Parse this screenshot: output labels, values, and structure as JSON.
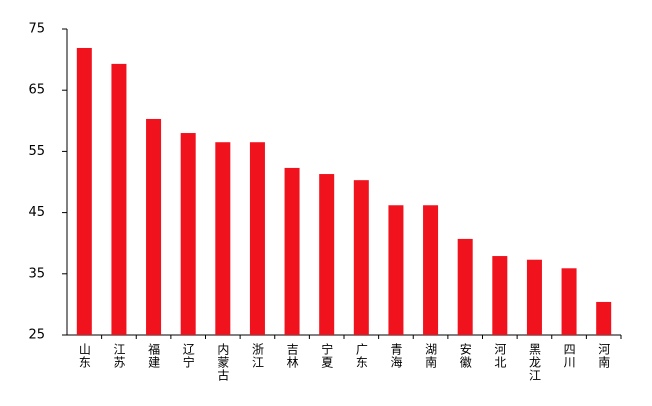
{
  "chart_data": {
    "type": "bar",
    "categories": [
      "山东",
      "江苏",
      "福建",
      "辽宁",
      "内蒙古",
      "浙江",
      "吉林",
      "宁夏",
      "广东",
      "青海",
      "湖南",
      "安徽",
      "河北",
      "黑龙江",
      "四川",
      "河南"
    ],
    "values": [
      71.9,
      69.3,
      60.3,
      58.0,
      56.5,
      56.5,
      52.3,
      51.3,
      50.3,
      46.2,
      46.2,
      40.7,
      37.9,
      37.3,
      35.9,
      30.4
    ],
    "color": "#f0121c",
    "ylim": [
      25,
      75
    ],
    "yticks": [
      25,
      35,
      45,
      55,
      65,
      75
    ],
    "grid": false
  }
}
